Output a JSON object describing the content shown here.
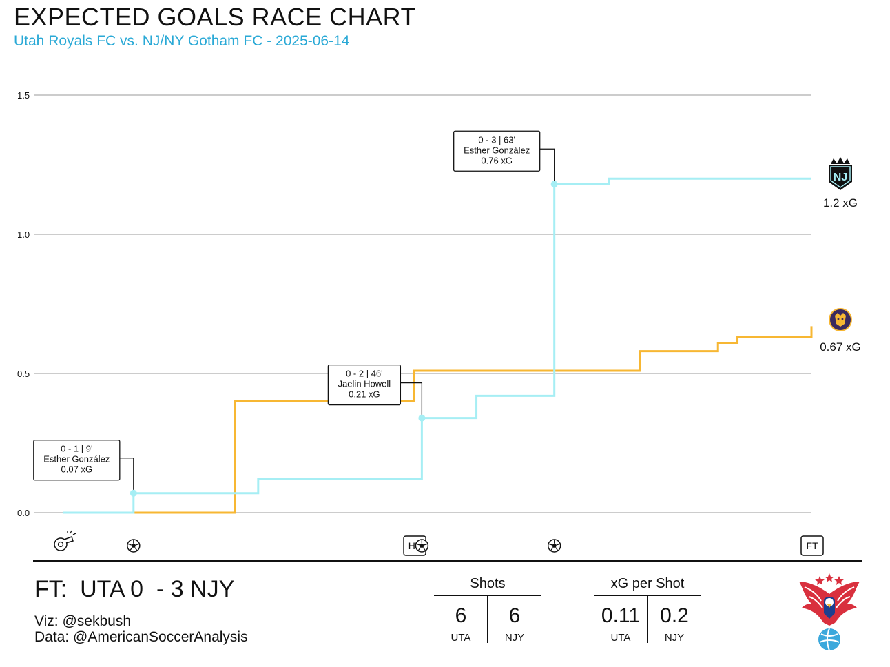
{
  "header": {
    "title": "EXPECTED GOALS RACE CHART",
    "subtitle": "Utah Royals FC vs. NJ/NY Gotham FC - 2025-06-14"
  },
  "colors": {
    "home": "#f7b733",
    "away": "#a6eef4",
    "subtitle": "#2aa9d6",
    "grid": "#cccccc"
  },
  "chart_data": {
    "type": "line",
    "step": true,
    "ylim": [
      0,
      1.5
    ],
    "xlim": [
      0,
      96
    ],
    "yticks": [
      "0.0",
      "0.5",
      "1.0",
      "1.5"
    ],
    "grid": "horizontal",
    "series": [
      {
        "team": "UTA",
        "color": "#f7b733",
        "end_label": "0.67 xG",
        "logo": "utah-royals-logo-icon",
        "points": [
          [
            9,
            0
          ],
          [
            22,
            0
          ],
          [
            22,
            0.4
          ],
          [
            45,
            0.4
          ],
          [
            45,
            0.51
          ],
          [
            74,
            0.51
          ],
          [
            74,
            0.58
          ],
          [
            84,
            0.58
          ],
          [
            84,
            0.61
          ],
          [
            86.5,
            0.61
          ],
          [
            86.5,
            0.63
          ],
          [
            96,
            0.63
          ],
          [
            96,
            0.67
          ]
        ]
      },
      {
        "team": "NJY",
        "color": "#a6eef4",
        "end_label": "1.2 xG",
        "logo": "gotham-fc-logo-icon",
        "points": [
          [
            0,
            0
          ],
          [
            9,
            0
          ],
          [
            9,
            0.07
          ],
          [
            25,
            0.07
          ],
          [
            25,
            0.12
          ],
          [
            46,
            0.12
          ],
          [
            46,
            0.34
          ],
          [
            53,
            0.34
          ],
          [
            53,
            0.42
          ],
          [
            63,
            0.42
          ],
          [
            63,
            1.18
          ],
          [
            70,
            1.18
          ],
          [
            70,
            1.2
          ],
          [
            96,
            1.2
          ]
        ]
      }
    ],
    "goals": [
      {
        "minute": 9,
        "xg_total": 0.07,
        "score": "0 - 1  |  9'",
        "scorer": "Esther González",
        "xg": "0.07 xG"
      },
      {
        "minute": 46,
        "xg_total": 0.34,
        "score": "0 - 2  |  46'",
        "scorer": "Jaelin Howell",
        "xg": "0.21 xG"
      },
      {
        "minute": 63,
        "xg_total": 1.18,
        "score": "0 - 3  |  63'",
        "scorer": "Esther González",
        "xg": "0.76 xG"
      }
    ],
    "timeline": [
      {
        "minute": 0,
        "type": "whistle",
        "icon": "whistle-icon"
      },
      {
        "minute": 9,
        "type": "goal",
        "icon": "soccer-ball-icon"
      },
      {
        "minute": 45,
        "type": "marker",
        "label": "HT"
      },
      {
        "minute": 46,
        "type": "goal",
        "icon": "soccer-ball-icon"
      },
      {
        "minute": 63,
        "type": "goal",
        "icon": "soccer-ball-icon"
      },
      {
        "minute": 96,
        "type": "marker",
        "label": "FT"
      }
    ]
  },
  "footer": {
    "result": "FT:  UTA 0  - 3 NJY",
    "viz_credit": "Viz: @sekbush",
    "data_credit": "Data: @AmericanSoccerAnalysis",
    "stats": [
      {
        "heading": "Shots",
        "home_value": "6",
        "away_value": "6",
        "home_team": "UTA",
        "away_team": "NJY"
      },
      {
        "heading": "xG per Shot",
        "home_value": "0.11",
        "away_value": "0.2",
        "home_team": "UTA",
        "away_team": "NJY"
      }
    ],
    "logo": "american-soccer-analysis-eagle-logo-icon"
  }
}
